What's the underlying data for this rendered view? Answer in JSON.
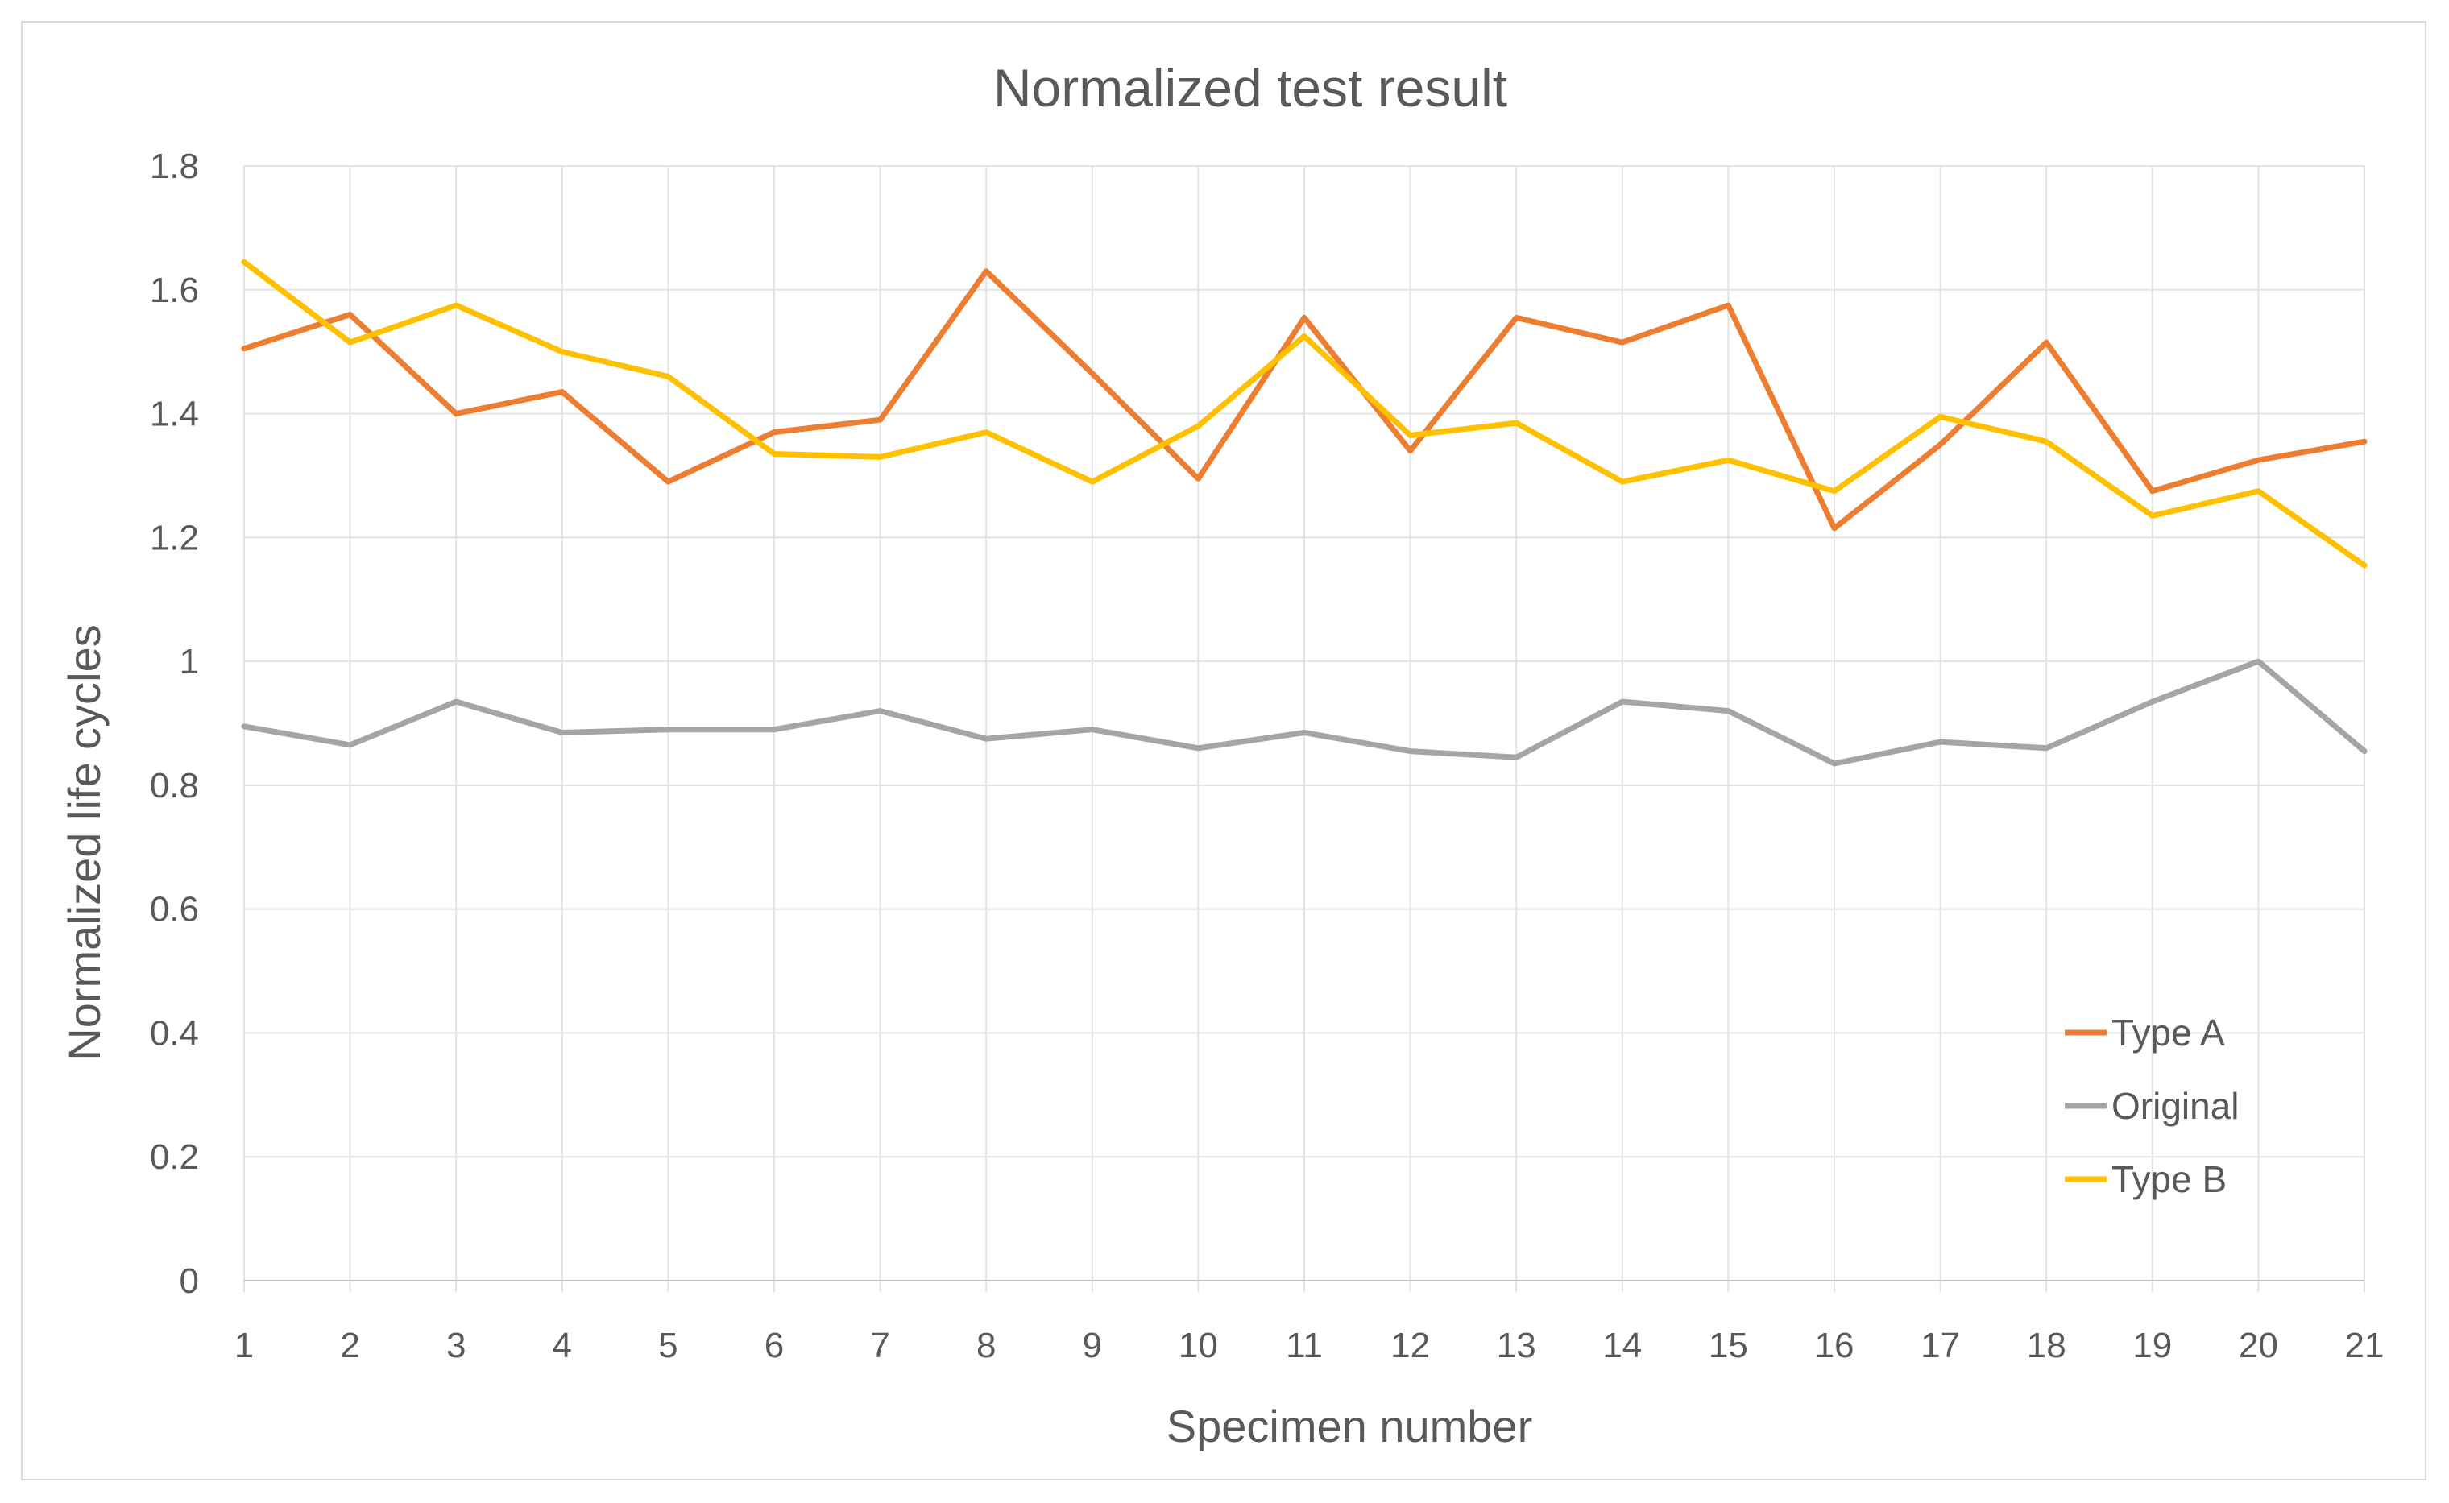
{
  "chart_data": {
    "type": "line",
    "title": "Normalized test result",
    "xlabel": "Specimen number",
    "ylabel": "Normalized life cycles",
    "ylim": [
      0,
      1.8
    ],
    "y_ticks": [
      "0",
      "0.2",
      "0.4",
      "0.6",
      "0.8",
      "1",
      "1.2",
      "1.4",
      "1.6",
      "1.8"
    ],
    "categories": [
      "1",
      "2",
      "3",
      "4",
      "5",
      "6",
      "7",
      "8",
      "9",
      "10",
      "11",
      "12",
      "13",
      "14",
      "15",
      "16",
      "17",
      "18",
      "19",
      "20",
      "21"
    ],
    "grid": true,
    "legend_position": "bottom-right",
    "series": [
      {
        "name": "Type A",
        "color": "#ED7D31",
        "values": [
          1.505,
          1.56,
          1.4,
          1.435,
          1.29,
          1.37,
          1.39,
          1.63,
          1.465,
          1.295,
          1.555,
          1.34,
          1.555,
          1.515,
          1.575,
          1.215,
          1.35,
          1.515,
          1.275,
          1.325,
          1.355
        ]
      },
      {
        "name": "Original",
        "color": "#A5A5A5",
        "values": [
          0.895,
          0.865,
          0.935,
          0.885,
          0.89,
          0.89,
          0.92,
          0.875,
          0.89,
          0.86,
          0.885,
          0.855,
          0.845,
          0.935,
          0.92,
          0.835,
          0.87,
          0.86,
          0.935,
          1.0,
          0.855
        ]
      },
      {
        "name": "Type B",
        "color": "#FFC000",
        "values": [
          1.645,
          1.515,
          1.575,
          1.5,
          1.46,
          1.335,
          1.33,
          1.37,
          1.29,
          1.38,
          1.525,
          1.365,
          1.385,
          1.29,
          1.325,
          1.275,
          1.395,
          1.355,
          1.235,
          1.275,
          1.155
        ]
      }
    ]
  }
}
